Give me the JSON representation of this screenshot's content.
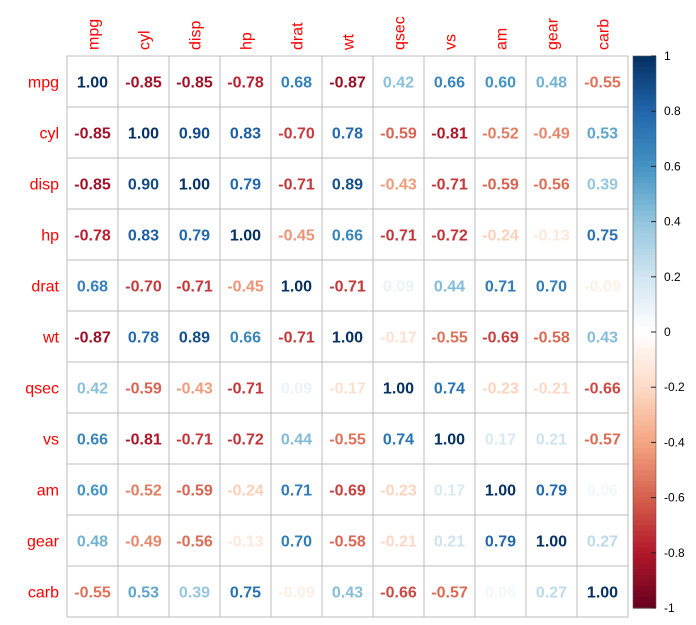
{
  "chart_data": {
    "type": "heatmap",
    "variables": [
      "mpg",
      "cyl",
      "disp",
      "hp",
      "drat",
      "wt",
      "qsec",
      "vs",
      "am",
      "gear",
      "carb"
    ],
    "values": [
      [
        1.0,
        -0.85,
        -0.85,
        -0.78,
        0.68,
        -0.87,
        0.42,
        0.66,
        0.6,
        0.48,
        -0.55
      ],
      [
        -0.85,
        1.0,
        0.9,
        0.83,
        -0.7,
        0.78,
        -0.59,
        -0.81,
        -0.52,
        -0.49,
        0.53
      ],
      [
        -0.85,
        0.9,
        1.0,
        0.79,
        -0.71,
        0.89,
        -0.43,
        -0.71,
        -0.59,
        -0.56,
        0.39
      ],
      [
        -0.78,
        0.83,
        0.79,
        1.0,
        -0.45,
        0.66,
        -0.71,
        -0.72,
        -0.24,
        -0.13,
        0.75
      ],
      [
        0.68,
        -0.7,
        -0.71,
        -0.45,
        1.0,
        -0.71,
        0.09,
        0.44,
        0.71,
        0.7,
        -0.09
      ],
      [
        -0.87,
        0.78,
        0.89,
        0.66,
        -0.71,
        1.0,
        -0.17,
        -0.55,
        -0.69,
        -0.58,
        0.43
      ],
      [
        0.42,
        -0.59,
        -0.43,
        -0.71,
        0.09,
        -0.17,
        1.0,
        0.74,
        -0.23,
        -0.21,
        -0.66
      ],
      [
        0.66,
        -0.81,
        -0.71,
        -0.72,
        0.44,
        -0.55,
        0.74,
        1.0,
        0.17,
        0.21,
        -0.57
      ],
      [
        0.6,
        -0.52,
        -0.59,
        -0.24,
        0.71,
        -0.69,
        -0.23,
        0.17,
        1.0,
        0.79,
        0.06
      ],
      [
        0.48,
        -0.49,
        -0.56,
        -0.13,
        0.7,
        -0.58,
        -0.21,
        0.21,
        0.79,
        1.0,
        0.27
      ],
      [
        -0.55,
        0.53,
        0.39,
        0.75,
        -0.09,
        0.43,
        -0.66,
        -0.57,
        0.06,
        0.27,
        1.0
      ]
    ],
    "value_range": [
      -1,
      1
    ],
    "colorbar_ticks": [
      "1",
      "0.8",
      "0.6",
      "0.4",
      "0.2",
      "0",
      "-0.2",
      "-0.4",
      "-0.6",
      "-0.8",
      "-1"
    ],
    "colorbar_tick_values": [
      1,
      0.8,
      0.6,
      0.4,
      0.2,
      0,
      -0.2,
      -0.4,
      -0.6,
      -0.8,
      -1
    ],
    "colorscale": [
      "#67001F",
      "#B2182B",
      "#D6604D",
      "#F4A582",
      "#FDDBC7",
      "#FFFFFF",
      "#D1E5F0",
      "#92C5DE",
      "#4393C3",
      "#2166AC",
      "#053061"
    ],
    "label_color": "#FF0000",
    "grid_color": "#BEBEBE",
    "number_format": "2 decimals",
    "colorbar_position": "right",
    "grid": true
  }
}
